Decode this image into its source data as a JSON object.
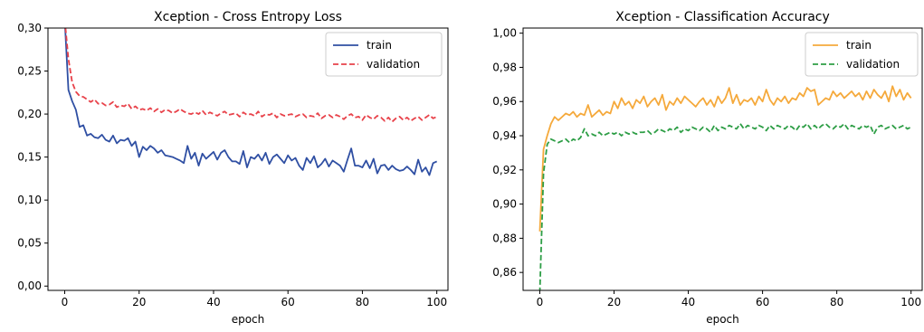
{
  "chart_data": [
    {
      "type": "line",
      "title": "Xception - Cross Entropy Loss",
      "xlabel": "epoch",
      "ylabel": "",
      "xlim": [
        -4.5,
        103
      ],
      "ylim": [
        -0.005,
        0.3
      ],
      "xticks": [
        "0",
        "20",
        "40",
        "60",
        "80",
        "100"
      ],
      "yticks": [
        "0,00",
        "0,05",
        "0,10",
        "0,15",
        "0,20",
        "0,25",
        "0,30"
      ],
      "legend_position": "top-right",
      "series": [
        {
          "name": "train",
          "color": "#2f4fa3",
          "style": "solid",
          "values": [
            0.31,
            0.228,
            0.215,
            0.205,
            0.185,
            0.187,
            0.175,
            0.177,
            0.173,
            0.172,
            0.176,
            0.17,
            0.168,
            0.175,
            0.166,
            0.17,
            0.169,
            0.172,
            0.163,
            0.168,
            0.15,
            0.162,
            0.158,
            0.163,
            0.16,
            0.155,
            0.158,
            0.152,
            0.151,
            0.15,
            0.148,
            0.146,
            0.143,
            0.163,
            0.148,
            0.155,
            0.14,
            0.154,
            0.148,
            0.152,
            0.156,
            0.147,
            0.155,
            0.158,
            0.15,
            0.145,
            0.145,
            0.142,
            0.157,
            0.138,
            0.15,
            0.148,
            0.153,
            0.146,
            0.155,
            0.142,
            0.15,
            0.153,
            0.148,
            0.143,
            0.152,
            0.146,
            0.149,
            0.14,
            0.135,
            0.149,
            0.143,
            0.151,
            0.138,
            0.142,
            0.148,
            0.139,
            0.146,
            0.143,
            0.14,
            0.133,
            0.147,
            0.16,
            0.14,
            0.14,
            0.138,
            0.146,
            0.137,
            0.148,
            0.131,
            0.14,
            0.141,
            0.135,
            0.14,
            0.136,
            0.134,
            0.135,
            0.139,
            0.135,
            0.13,
            0.147,
            0.133,
            0.138,
            0.129,
            0.143,
            0.145
          ]
        },
        {
          "name": "validation",
          "color": "#e8424a",
          "style": "dashed",
          "values": [
            0.31,
            0.264,
            0.237,
            0.226,
            0.221,
            0.22,
            0.217,
            0.214,
            0.217,
            0.212,
            0.213,
            0.21,
            0.211,
            0.214,
            0.208,
            0.21,
            0.209,
            0.212,
            0.206,
            0.209,
            0.205,
            0.206,
            0.204,
            0.207,
            0.203,
            0.206,
            0.202,
            0.205,
            0.204,
            0.201,
            0.203,
            0.206,
            0.203,
            0.201,
            0.2,
            0.202,
            0.2,
            0.204,
            0.199,
            0.202,
            0.2,
            0.198,
            0.201,
            0.203,
            0.199,
            0.2,
            0.201,
            0.197,
            0.202,
            0.199,
            0.2,
            0.198,
            0.203,
            0.197,
            0.2,
            0.199,
            0.201,
            0.196,
            0.2,
            0.198,
            0.199,
            0.2,
            0.197,
            0.199,
            0.2,
            0.196,
            0.198,
            0.197,
            0.201,
            0.195,
            0.198,
            0.199,
            0.196,
            0.199,
            0.197,
            0.194,
            0.198,
            0.2,
            0.196,
            0.197,
            0.193,
            0.199,
            0.196,
            0.194,
            0.198,
            0.196,
            0.192,
            0.196,
            0.191,
            0.195,
            0.197,
            0.193,
            0.196,
            0.192,
            0.195,
            0.197,
            0.193,
            0.196,
            0.199,
            0.195,
            0.197
          ]
        }
      ]
    },
    {
      "type": "line",
      "title": "Xception - Classification Accuracy",
      "xlabel": "epoch",
      "ylabel": "",
      "xlim": [
        -4.5,
        103
      ],
      "ylim": [
        0.8495,
        1.003
      ],
      "xticks": [
        "0",
        "20",
        "40",
        "60",
        "80",
        "100"
      ],
      "yticks": [
        "0,86",
        "0,88",
        "0,90",
        "0,92",
        "0,94",
        "0,96",
        "0,98",
        "1,00"
      ],
      "legend_position": "top-right",
      "series": [
        {
          "name": "train",
          "color": "#f5a93b",
          "style": "solid",
          "values": [
            0.884,
            0.932,
            0.94,
            0.947,
            0.951,
            0.949,
            0.951,
            0.953,
            0.952,
            0.954,
            0.951,
            0.953,
            0.952,
            0.958,
            0.951,
            0.953,
            0.955,
            0.952,
            0.954,
            0.953,
            0.96,
            0.956,
            0.962,
            0.958,
            0.96,
            0.956,
            0.961,
            0.959,
            0.963,
            0.957,
            0.96,
            0.962,
            0.958,
            0.964,
            0.955,
            0.96,
            0.958,
            0.962,
            0.959,
            0.963,
            0.961,
            0.959,
            0.957,
            0.96,
            0.962,
            0.958,
            0.961,
            0.957,
            0.963,
            0.959,
            0.962,
            0.968,
            0.959,
            0.964,
            0.958,
            0.961,
            0.96,
            0.962,
            0.958,
            0.963,
            0.96,
            0.967,
            0.961,
            0.958,
            0.962,
            0.96,
            0.963,
            0.959,
            0.962,
            0.961,
            0.965,
            0.963,
            0.968,
            0.966,
            0.967,
            0.958,
            0.96,
            0.962,
            0.961,
            0.966,
            0.963,
            0.965,
            0.962,
            0.964,
            0.966,
            0.963,
            0.965,
            0.961,
            0.966,
            0.962,
            0.967,
            0.964,
            0.962,
            0.966,
            0.96,
            0.969,
            0.963,
            0.967,
            0.961,
            0.965,
            0.962
          ]
        },
        {
          "name": "validation",
          "color": "#2e9e46",
          "style": "dashed",
          "values": [
            0.848,
            0.918,
            0.935,
            0.938,
            0.937,
            0.936,
            0.937,
            0.938,
            0.936,
            0.938,
            0.937,
            0.939,
            0.944,
            0.94,
            0.941,
            0.94,
            0.942,
            0.94,
            0.941,
            0.942,
            0.941,
            0.942,
            0.94,
            0.942,
            0.941,
            0.942,
            0.941,
            0.942,
            0.942,
            0.943,
            0.941,
            0.942,
            0.944,
            0.943,
            0.942,
            0.944,
            0.943,
            0.945,
            0.942,
            0.944,
            0.943,
            0.945,
            0.944,
            0.943,
            0.945,
            0.944,
            0.942,
            0.946,
            0.943,
            0.945,
            0.944,
            0.946,
            0.945,
            0.944,
            0.947,
            0.944,
            0.946,
            0.945,
            0.944,
            0.946,
            0.945,
            0.943,
            0.946,
            0.944,
            0.946,
            0.945,
            0.944,
            0.946,
            0.945,
            0.943,
            0.946,
            0.945,
            0.947,
            0.944,
            0.946,
            0.944,
            0.946,
            0.947,
            0.945,
            0.944,
            0.946,
            0.945,
            0.947,
            0.944,
            0.946,
            0.945,
            0.944,
            0.946,
            0.945,
            0.946,
            0.941,
            0.945,
            0.946,
            0.944,
            0.945,
            0.946,
            0.944,
            0.945,
            0.946,
            0.944,
            0.945
          ]
        }
      ]
    }
  ]
}
